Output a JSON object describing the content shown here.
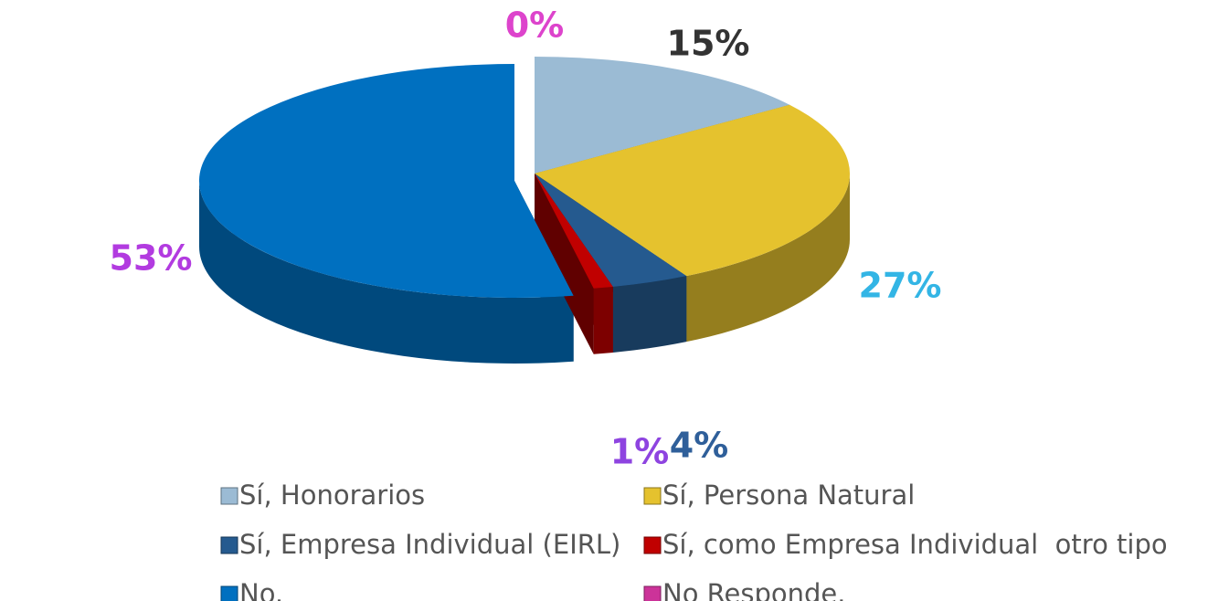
{
  "chart_data": {
    "type": "pie3d",
    "categories": [
      "Sí, Honorarios",
      "Sí, Persona Natural",
      "Sí, Empresa Individual (EIRL)",
      "Sí, como Empresa Individual  otro tipo",
      "No.",
      "No Responde."
    ],
    "values": [
      15,
      27,
      4,
      1,
      53,
      0
    ],
    "value_labels": [
      "15%",
      "27%",
      "4%",
      "1%",
      "53%",
      "0%"
    ],
    "colors": [
      "#9bbbd4",
      "#e5c22e",
      "#255a8f",
      "#c00000",
      "#0070c0",
      "#cc3399"
    ],
    "label_colors": [
      "#333333",
      "#33b5e5",
      "#2f5f9a",
      "#8e44e0",
      "#b23be0",
      "#dd44cc"
    ],
    "legend": "bottom"
  }
}
